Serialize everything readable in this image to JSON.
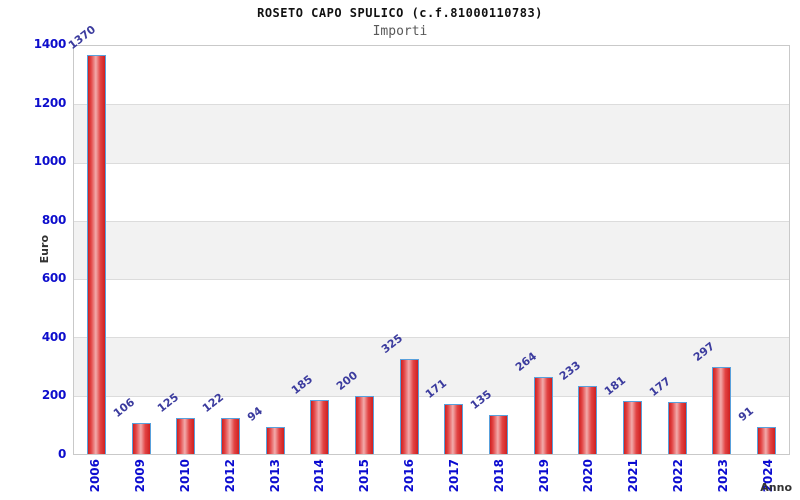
{
  "chart_data": {
    "type": "bar",
    "title": "ROSETO CAPO SPULICO (c.f.81000110783)",
    "subtitle": "Importi",
    "xlabel": "Anno",
    "ylabel": "Euro",
    "categories": [
      "2006",
      "2009",
      "2010",
      "2012",
      "2013",
      "2014",
      "2015",
      "2016",
      "2017",
      "2018",
      "2019",
      "2020",
      "2021",
      "2022",
      "2023",
      "2024"
    ],
    "values": [
      1370,
      106,
      125,
      122,
      94,
      185,
      200,
      325,
      171,
      135,
      264,
      233,
      181,
      177,
      297,
      91
    ],
    "ylim": [
      0,
      1400
    ],
    "yticks": [
      0,
      200,
      400,
      600,
      800,
      1000,
      1200,
      1400
    ],
    "grid": "horizontal-bands",
    "legend": "none",
    "colors": {
      "bar_fill_edge": "#cf2020",
      "bar_fill_mid": "#e24444",
      "bar_fill_highlight": "#f2abab",
      "bar_border": "#58a0dc",
      "value_label": "#3b3b9e",
      "tick_label": "#0d0dcc",
      "band_gray": "#f2f2f2",
      "band_white": "#ffffff",
      "gridline": "#dcdcdc",
      "plot_border": "#c9c9c9",
      "title": "#111111",
      "subtitle": "#595959",
      "axis_title": "#333333"
    }
  }
}
